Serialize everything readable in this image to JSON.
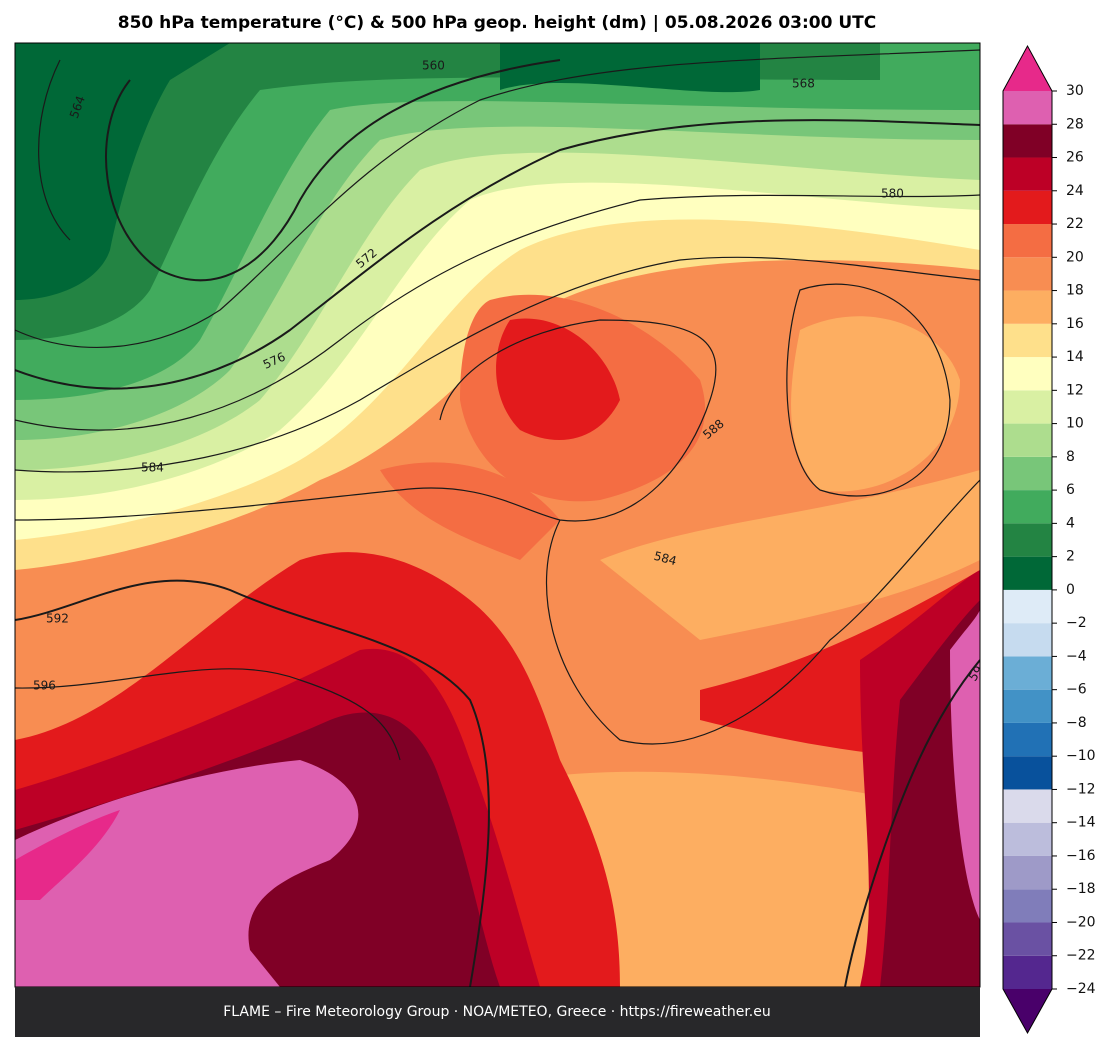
{
  "title": "850 hPa temperature (°C) & 500 hPa geop. height (dm)  |  05.08.2026 03:00 UTC",
  "contour_labels": [
    "560",
    "568",
    "564",
    "580",
    "572",
    "576",
    "584",
    "588",
    "584",
    "592",
    "596",
    "59"
  ],
  "footer": "FLAME – Fire Meteorology Group · NOA/METEO, Greece · https://fireweather.eu",
  "colorbar": {
    "ticks": [
      {
        "value": -24,
        "label": "−24"
      },
      {
        "value": -22,
        "label": "−22"
      },
      {
        "value": -20,
        "label": "−20"
      },
      {
        "value": -18,
        "label": "−18"
      },
      {
        "value": -16,
        "label": "−16"
      },
      {
        "value": -14,
        "label": "−14"
      },
      {
        "value": -12,
        "label": "−12"
      },
      {
        "value": -10,
        "label": "−10"
      },
      {
        "value": -8,
        "label": "−8"
      },
      {
        "value": -6,
        "label": "−6"
      },
      {
        "value": -4,
        "label": "−4"
      },
      {
        "value": -2,
        "label": "−2"
      },
      0,
      2,
      4,
      6,
      8,
      10,
      12,
      14,
      16,
      18,
      20,
      22,
      24,
      26,
      28,
      30
    ],
    "colors": [
      "#54278f",
      "#6a51a3",
      "#807dba",
      "#9e9ac8",
      "#bcbddc",
      "#dadaeb",
      "#08519c",
      "#2171b5",
      "#4292c6",
      "#6baed6",
      "#c6dbef",
      "#deebf7",
      "#006837",
      "#238443",
      "#41ab5d",
      "#78c679",
      "#addd8e",
      "#d9f0a3",
      "#ffffbf",
      "#fee08b",
      "#fdae61",
      "#f88d52",
      "#f46d43",
      "#e31a1c",
      "#bd0026",
      "#800026",
      "#de60b0"
    ],
    "under_color": "#49006a",
    "over_color": "#e7298a"
  }
}
